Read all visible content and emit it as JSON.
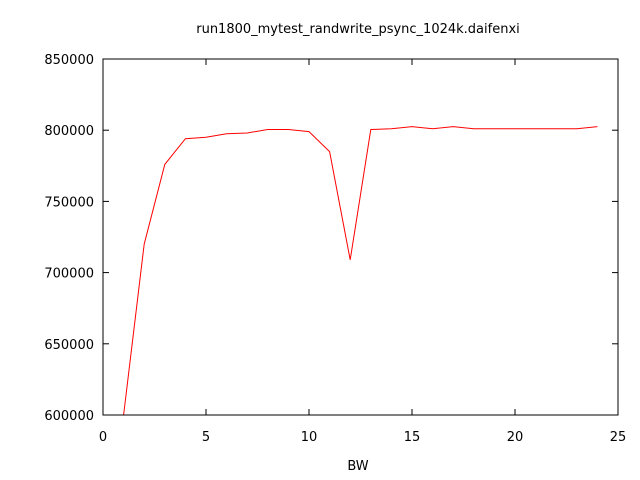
{
  "chart_data": {
    "type": "line",
    "title": "run1800_mytest_randwrite_psync_1024k.daifenxi",
    "xlabel": "BW",
    "ylabel": "",
    "xlim": [
      0,
      25
    ],
    "ylim": [
      600000,
      850000
    ],
    "x_ticks": [
      "0",
      "5",
      "10",
      "15",
      "20",
      "25"
    ],
    "y_ticks": [
      "600000",
      "650000",
      "700000",
      "750000",
      "800000",
      "850000"
    ],
    "x_tick_values": [
      0,
      5,
      10,
      15,
      20,
      25
    ],
    "y_tick_values": [
      600000,
      650000,
      700000,
      750000,
      800000,
      850000
    ],
    "grid": false,
    "legend": "none",
    "series_color": "#ff0000",
    "series": [
      {
        "x": [
          1,
          2,
          3,
          4,
          5,
          6,
          7,
          8,
          9,
          10,
          11,
          12,
          13,
          14,
          15,
          16,
          17,
          18,
          19,
          20,
          21,
          22,
          23,
          24
        ],
        "values": [
          600000,
          720000,
          776000,
          794000,
          795000,
          797500,
          798000,
          800500,
          800500,
          799000,
          785000,
          709000,
          800500,
          801000,
          802500,
          801000,
          802500,
          801000,
          801000,
          801000,
          801000,
          801000,
          801000,
          802500
        ]
      }
    ]
  }
}
